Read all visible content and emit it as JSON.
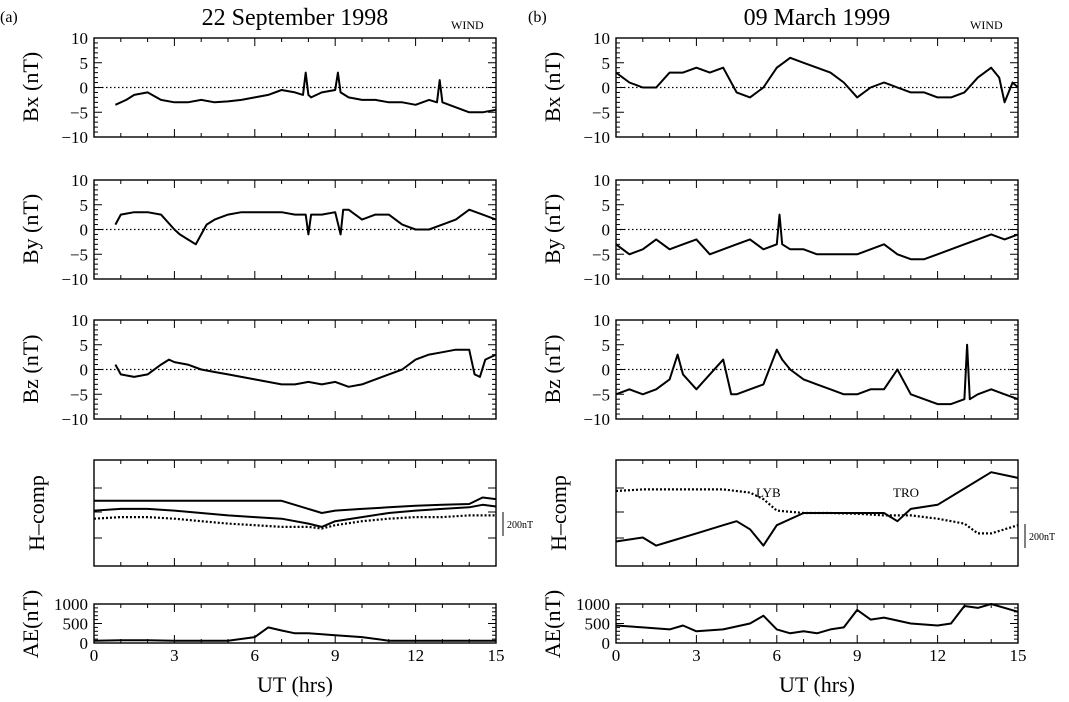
{
  "figure": {
    "panels": [
      {
        "label": "(a)",
        "title": "22 September 1998",
        "source": "WIND"
      },
      {
        "label": "(b)",
        "title": "09 March 1999",
        "source": "WIND"
      }
    ],
    "xlabel": "UT  (hrs)",
    "row_ylabels": [
      "Bx  (nT)",
      "By  (nT)",
      "Bz  (nT)",
      "H–comp",
      "AE(nT)"
    ],
    "scale_bar_label": "200nT",
    "annotations": [
      "LYB",
      "TRO"
    ]
  },
  "chart_data": [
    {
      "type": "line",
      "panel": "a",
      "row": "Bx",
      "xlabel": "UT  (hrs)",
      "ylabel": "Bx  (nT)",
      "xlim": [
        0,
        15
      ],
      "ylim": [
        -10,
        10
      ],
      "reference_line": 0,
      "series": [
        {
          "x": [
            0.8,
            1.2,
            1.5,
            2,
            2.5,
            3,
            3.5,
            4,
            4.5,
            5,
            5.5,
            6,
            6.5,
            7,
            7.5,
            7.8,
            7.9,
            8,
            8.1,
            8.5,
            9,
            9.1,
            9.2,
            9.5,
            10,
            10.5,
            11,
            11.5,
            12,
            12.5,
            12.8,
            12.9,
            13,
            13.5,
            14,
            14.5,
            15
          ],
          "y": [
            -3.5,
            -2.5,
            -1.5,
            -1,
            -2.5,
            -3,
            -3,
            -2.5,
            -3,
            -2.8,
            -2.5,
            -2,
            -1.5,
            -0.5,
            -1,
            -1.5,
            3,
            -1.5,
            -2,
            -1,
            -0.5,
            3,
            -1,
            -2,
            -2.5,
            -2.5,
            -3,
            -3,
            -3.5,
            -2.5,
            -3,
            1.5,
            -3,
            -4,
            -5,
            -5,
            -4.5
          ]
        }
      ]
    },
    {
      "type": "line",
      "panel": "b",
      "row": "Bx",
      "xlabel": "UT  (hrs)",
      "ylabel": "Bx  (nT)",
      "xlim": [
        0,
        15
      ],
      "ylim": [
        -10,
        10
      ],
      "reference_line": 0,
      "series": [
        {
          "x": [
            0,
            0.5,
            1,
            1.5,
            2,
            2.5,
            3,
            3.5,
            4,
            4.5,
            5,
            5.5,
            6,
            6.5,
            7,
            7.5,
            8,
            8.5,
            9,
            9.5,
            10,
            10.5,
            11,
            11.5,
            12,
            12.5,
            13,
            13.5,
            14,
            14.3,
            14.5,
            14.8,
            15
          ],
          "y": [
            3,
            1,
            0,
            0,
            3,
            3,
            4,
            3,
            4,
            -1,
            -2,
            0,
            4,
            6,
            5,
            4,
            3,
            1,
            -2,
            0,
            1,
            0,
            -1,
            -1,
            -2,
            -2,
            -1,
            2,
            4,
            2,
            -3,
            1,
            0
          ]
        }
      ]
    },
    {
      "type": "line",
      "panel": "a",
      "row": "By",
      "xlabel": "UT  (hrs)",
      "ylabel": "By  (nT)",
      "xlim": [
        0,
        15
      ],
      "ylim": [
        -10,
        10
      ],
      "reference_line": 0,
      "series": [
        {
          "x": [
            0.8,
            1,
            1.5,
            2,
            2.5,
            3,
            3.2,
            3.5,
            3.8,
            4,
            4.2,
            4.5,
            5,
            5.5,
            6,
            6.5,
            7,
            7.5,
            7.9,
            8,
            8.1,
            8.5,
            9,
            9.2,
            9.3,
            9.5,
            10,
            10.5,
            11,
            11.5,
            12,
            12.5,
            13,
            13.5,
            14,
            14.5,
            15
          ],
          "y": [
            1,
            3,
            3.5,
            3.5,
            3,
            0,
            -1,
            -2,
            -3,
            -1,
            1,
            2,
            3,
            3.5,
            3.5,
            3.5,
            3.5,
            3,
            3,
            -1,
            3,
            3,
            3.5,
            -1,
            4,
            4,
            2,
            3,
            3,
            1,
            0,
            0,
            1,
            2,
            4,
            3,
            2
          ]
        }
      ]
    },
    {
      "type": "line",
      "panel": "b",
      "row": "By",
      "xlabel": "UT  (hrs)",
      "ylabel": "By  (nT)",
      "xlim": [
        0,
        15
      ],
      "ylim": [
        -10,
        10
      ],
      "reference_line": 0,
      "series": [
        {
          "x": [
            0,
            0.5,
            1,
            1.5,
            2,
            2.5,
            3,
            3.5,
            4,
            4.5,
            5,
            5.5,
            6,
            6.1,
            6.2,
            6.5,
            7,
            7.5,
            8,
            8.5,
            9,
            9.5,
            10,
            10.5,
            11,
            11.5,
            12,
            12.5,
            13,
            13.5,
            14,
            14.5,
            15
          ],
          "y": [
            -3,
            -5,
            -4,
            -2,
            -4,
            -3,
            -2,
            -5,
            -4,
            -3,
            -2,
            -4,
            -3,
            3,
            -3,
            -4,
            -4,
            -5,
            -5,
            -5,
            -5,
            -4,
            -3,
            -5,
            -6,
            -6,
            -5,
            -4,
            -3,
            -2,
            -1,
            -2,
            -1
          ]
        }
      ]
    },
    {
      "type": "line",
      "panel": "a",
      "row": "Bz",
      "xlabel": "UT  (hrs)",
      "ylabel": "Bz  (nT)",
      "xlim": [
        0,
        15
      ],
      "ylim": [
        -10,
        10
      ],
      "reference_line": 0,
      "series": [
        {
          "x": [
            0.8,
            1,
            1.5,
            2,
            2.5,
            2.8,
            3,
            3.5,
            4,
            4.5,
            5,
            5.5,
            6,
            6.5,
            7,
            7.5,
            8,
            8.5,
            9,
            9.5,
            10,
            10.5,
            11,
            11.5,
            12,
            12.5,
            13,
            13.5,
            14,
            14.2,
            14.4,
            14.6,
            15
          ],
          "y": [
            1,
            -1,
            -1.5,
            -1,
            1,
            2,
            1.5,
            1,
            0,
            -0.5,
            -1,
            -1.5,
            -2,
            -2.5,
            -3,
            -3,
            -2.5,
            -3,
            -2.5,
            -3.5,
            -3,
            -2,
            -1,
            0,
            2,
            3,
            3.5,
            4,
            4,
            -1,
            -1.5,
            2,
            3
          ]
        }
      ]
    },
    {
      "type": "line",
      "panel": "b",
      "row": "Bz",
      "xlabel": "UT  (hrs)",
      "ylabel": "Bz  (nT)",
      "xlim": [
        0,
        15
      ],
      "ylim": [
        -10,
        10
      ],
      "reference_line": 0,
      "series": [
        {
          "x": [
            0,
            0.5,
            1,
            1.5,
            2,
            2.3,
            2.5,
            3,
            3.5,
            4,
            4.3,
            4.5,
            5,
            5.5,
            6,
            6.2,
            6.5,
            7,
            7.5,
            8,
            8.5,
            9,
            9.5,
            10,
            10.5,
            11,
            11.5,
            12,
            12.5,
            13,
            13.1,
            13.2,
            13.5,
            14,
            14.5,
            15
          ],
          "y": [
            -5,
            -4,
            -5,
            -4,
            -2,
            3,
            -1,
            -4,
            -1,
            2,
            -5,
            -5,
            -4,
            -3,
            4,
            2,
            0,
            -2,
            -3,
            -4,
            -5,
            -5,
            -4,
            -4,
            0,
            -5,
            -6,
            -7,
            -7,
            -6,
            5,
            -6,
            -5,
            -4,
            -5,
            -6
          ]
        }
      ]
    },
    {
      "type": "line",
      "panel": "a",
      "row": "H-comp",
      "ylabel": "H–comp",
      "xlim": [
        0,
        15
      ],
      "scale_bar_nT": 200,
      "series": [
        {
          "style": "solid",
          "x": [
            0,
            1,
            2,
            3,
            4,
            5,
            6,
            7,
            8,
            8.5,
            9,
            10,
            11,
            12,
            13,
            14,
            14.5,
            15
          ],
          "y": [
            40,
            40,
            40,
            40,
            40,
            40,
            40,
            40,
            30,
            25,
            28,
            30,
            32,
            34,
            35,
            36,
            44,
            42
          ]
        },
        {
          "style": "solid",
          "x": [
            0,
            1,
            2,
            3,
            4,
            5,
            6,
            7,
            8,
            8.5,
            9,
            10,
            11,
            12,
            13,
            14,
            14.5,
            15
          ],
          "y": [
            28,
            30,
            30,
            28,
            25,
            22,
            20,
            18,
            12,
            8,
            15,
            20,
            25,
            28,
            30,
            32,
            35,
            33
          ]
        },
        {
          "style": "dotted",
          "x": [
            0,
            1,
            2,
            3,
            4,
            5,
            6,
            7,
            8,
            8.5,
            9,
            10,
            11,
            12,
            13,
            14,
            15
          ],
          "y": [
            18,
            20,
            20,
            18,
            15,
            12,
            10,
            8,
            8,
            6,
            10,
            15,
            18,
            20,
            20,
            22,
            22
          ]
        }
      ]
    },
    {
      "type": "line",
      "panel": "b",
      "row": "H-comp",
      "ylabel": "H–comp",
      "xlim": [
        0,
        15
      ],
      "scale_bar_nT": 200,
      "annotations": [
        "LYB",
        "TRO"
      ],
      "series": [
        {
          "style": "dotted",
          "name": "LYB",
          "x": [
            0,
            1,
            2,
            3,
            4,
            5,
            5.5,
            6,
            7,
            8,
            9,
            10,
            11,
            12,
            13,
            13.5,
            14,
            15
          ],
          "y": [
            52,
            54,
            54,
            54,
            54,
            50,
            42,
            28,
            25,
            25,
            24,
            22,
            22,
            18,
            12,
            0,
            0,
            10
          ]
        },
        {
          "style": "solid",
          "name": "TRO",
          "x": [
            0,
            1,
            1.5,
            2,
            3,
            4,
            4.5,
            5,
            5.5,
            6,
            7,
            8,
            9,
            10,
            10.5,
            11,
            12,
            13,
            14,
            15
          ],
          "y": [
            -10,
            -5,
            -15,
            -10,
            0,
            10,
            15,
            5,
            -15,
            10,
            25,
            25,
            25,
            25,
            15,
            30,
            35,
            55,
            75,
            68
          ]
        }
      ]
    },
    {
      "type": "line",
      "panel": "a",
      "row": "AE",
      "xlabel": "UT  (hrs)",
      "ylabel": "AE(nT)",
      "xlim": [
        0,
        15
      ],
      "ylim": [
        0,
        1000
      ],
      "series": [
        {
          "x": [
            0,
            1,
            2,
            3,
            4,
            5,
            6,
            6.5,
            7,
            7.5,
            8,
            9,
            10,
            11,
            12,
            13,
            14,
            15
          ],
          "y": [
            60,
            70,
            70,
            60,
            60,
            60,
            150,
            400,
            320,
            250,
            250,
            200,
            150,
            60,
            60,
            60,
            60,
            60
          ]
        }
      ]
    },
    {
      "type": "line",
      "panel": "b",
      "row": "AE",
      "xlabel": "UT  (hrs)",
      "ylabel": "AE(nT)",
      "xlim": [
        0,
        15
      ],
      "ylim": [
        0,
        1000
      ],
      "series": [
        {
          "x": [
            0,
            1,
            2,
            2.5,
            3,
            4,
            5,
            5.5,
            6,
            6.5,
            7,
            7.5,
            8,
            8.5,
            9,
            9.5,
            10,
            11,
            12,
            12.5,
            13,
            13.5,
            14,
            15
          ],
          "y": [
            450,
            400,
            350,
            450,
            300,
            350,
            500,
            700,
            350,
            250,
            300,
            250,
            350,
            400,
            850,
            600,
            650,
            500,
            450,
            500,
            950,
            900,
            1000,
            800
          ]
        }
      ]
    }
  ]
}
